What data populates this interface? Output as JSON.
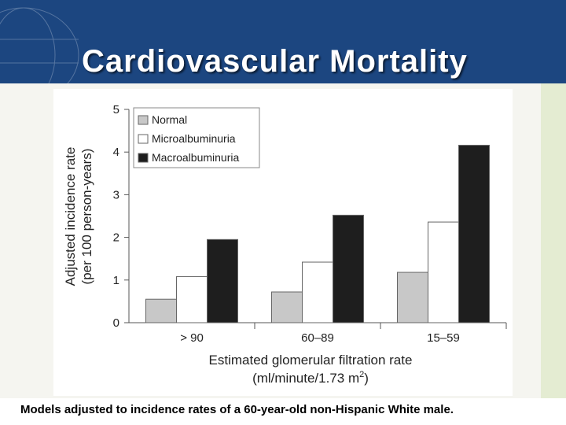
{
  "slide": {
    "title": "Cardiovascular Mortality",
    "caption": "Models adjusted to incidence rates of a 60-year-old non-Hispanic White male."
  },
  "colors": {
    "header_bg": "#1c4680",
    "accent_band": "#e4ecd2",
    "normal": "#c8c8c8",
    "micro": "#ffffff",
    "macro": "#1e1e1e"
  },
  "chart_data": {
    "type": "bar",
    "categories": [
      "> 90",
      "60–89",
      "15–59"
    ],
    "series": [
      {
        "name": "Normal",
        "values": [
          0.55,
          0.72,
          1.18
        ]
      },
      {
        "name": "Microalbuminuria",
        "values": [
          1.08,
          1.42,
          2.36
        ]
      },
      {
        "name": "Macroalbuminuria",
        "values": [
          1.95,
          2.52,
          4.16
        ]
      }
    ],
    "ylim": [
      0,
      5
    ],
    "yticks": [
      "0",
      "1",
      "2",
      "3",
      "4",
      "5"
    ],
    "ylabel_line1": "Adjusted incidence rate",
    "ylabel_line2": "(per 100 person-years)",
    "xlabel_line1": "Estimated glomerular filtration rate",
    "xlabel_line2": "(ml/minute/1.73 m",
    "xlabel_sup": "2",
    "xlabel_close": ")",
    "legend_position": "top-left",
    "grid": false
  }
}
